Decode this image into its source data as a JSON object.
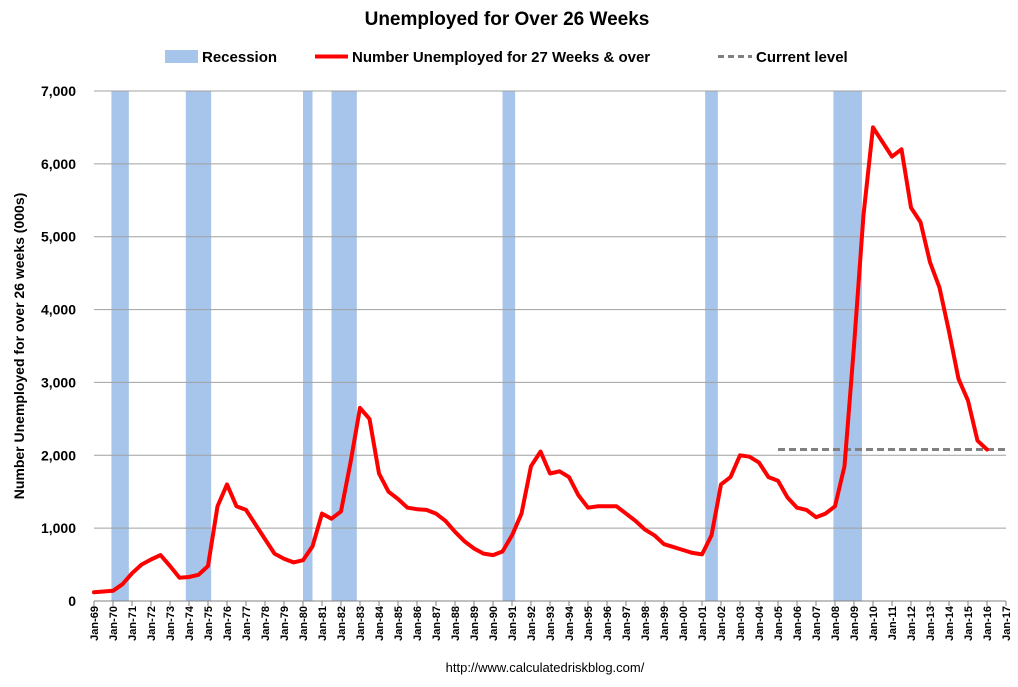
{
  "chart_data": {
    "type": "line",
    "title": "Unemployed for Over 26 Weeks",
    "ylabel": "Number Unemployed for over 26 weeks (000s)",
    "xlabel": "",
    "ylim": [
      0,
      7000
    ],
    "xlim": [
      "Jan-69",
      "Jan-17"
    ],
    "grid": "horizontal",
    "legend_position": "top",
    "source": "http://www.calculatedriskblog.com/",
    "y_ticks": [
      "0",
      "1,000",
      "2,000",
      "3,000",
      "4,000",
      "5,000",
      "6,000",
      "7,000"
    ],
    "y_tick_values": [
      0,
      1000,
      2000,
      3000,
      4000,
      5000,
      6000,
      7000
    ],
    "x_ticks": [
      "Jan-69",
      "Jan-70",
      "Jan-71",
      "Jan-72",
      "Jan-73",
      "Jan-74",
      "Jan-75",
      "Jan-76",
      "Jan-77",
      "Jan-78",
      "Jan-79",
      "Jan-80",
      "Jan-81",
      "Jan-82",
      "Jan-83",
      "Jan-84",
      "Jan-85",
      "Jan-86",
      "Jan-87",
      "Jan-88",
      "Jan-89",
      "Jan-90",
      "Jan-91",
      "Jan-92",
      "Jan-93",
      "Jan-94",
      "Jan-95",
      "Jan-96",
      "Jan-97",
      "Jan-98",
      "Jan-99",
      "Jan-00",
      "Jan-01",
      "Jan-02",
      "Jan-03",
      "Jan-04",
      "Jan-05",
      "Jan-06",
      "Jan-07",
      "Jan-08",
      "Jan-09",
      "Jan-10",
      "Jan-11",
      "Jan-12",
      "Jan-13",
      "Jan-14",
      "Jan-15",
      "Jan-16",
      "Jan-17"
    ],
    "legend": {
      "recession": "Recession",
      "series": "Number Unemployed for 27 Weeks & over",
      "current": "Current level"
    },
    "colors": {
      "recession": "#a7c4ea",
      "series": "#ff0000",
      "current": "#808080",
      "grid": "#a0a0a0"
    },
    "recessions": [
      {
        "start": "Dec-69",
        "end": "Nov-70"
      },
      {
        "start": "Nov-73",
        "end": "Mar-75"
      },
      {
        "start": "Jan-80",
        "end": "Jul-80"
      },
      {
        "start": "Jul-81",
        "end": "Nov-82"
      },
      {
        "start": "Jul-90",
        "end": "Mar-91"
      },
      {
        "start": "Mar-01",
        "end": "Nov-01"
      },
      {
        "start": "Dec-07",
        "end": "Jun-09"
      }
    ],
    "current_level": {
      "value": 2080,
      "from": "Jan-05",
      "to": "Jan-17"
    },
    "series": [
      {
        "name": "Number Unemployed for 27 Weeks & over",
        "x": [
          "Jan-69",
          "Jul-69",
          "Jan-70",
          "Jul-70",
          "Jan-71",
          "Jul-71",
          "Jan-72",
          "Jul-72",
          "Jan-73",
          "Jul-73",
          "Jan-74",
          "Jul-74",
          "Jan-75",
          "Jul-75",
          "Jan-76",
          "Jul-76",
          "Jan-77",
          "Jul-77",
          "Jan-78",
          "Jul-78",
          "Jan-79",
          "Jul-79",
          "Jan-80",
          "Jul-80",
          "Jan-81",
          "Jul-81",
          "Jan-82",
          "Jul-82",
          "Jan-83",
          "Jul-83",
          "Jan-84",
          "Jul-84",
          "Jan-85",
          "Jul-85",
          "Jan-86",
          "Jul-86",
          "Jan-87",
          "Jul-87",
          "Jan-88",
          "Jul-88",
          "Jan-89",
          "Jul-89",
          "Jan-90",
          "Jul-90",
          "Jan-91",
          "Jul-91",
          "Jan-92",
          "Jul-92",
          "Jan-93",
          "Jul-93",
          "Jan-94",
          "Jul-94",
          "Jan-95",
          "Jul-95",
          "Jan-96",
          "Jul-96",
          "Jan-97",
          "Jul-97",
          "Jan-98",
          "Jul-98",
          "Jan-99",
          "Jul-99",
          "Jan-00",
          "Jul-00",
          "Jan-01",
          "Jul-01",
          "Jan-02",
          "Jul-02",
          "Jan-03",
          "Jul-03",
          "Jan-04",
          "Jul-04",
          "Jan-05",
          "Jul-05",
          "Jan-06",
          "Jul-06",
          "Jan-07",
          "Jul-07",
          "Jan-08",
          "Jul-08",
          "Jan-09",
          "Jul-09",
          "Jan-10",
          "Jul-10",
          "Jan-11",
          "Jul-11",
          "Jan-12",
          "Jul-12",
          "Jan-13",
          "Jul-13",
          "Jan-14",
          "Jul-14",
          "Jan-15",
          "Jul-15",
          "Jan-16"
        ],
        "values": [
          120,
          130,
          140,
          230,
          380,
          500,
          570,
          630,
          480,
          320,
          330,
          360,
          480,
          1300,
          1600,
          1300,
          1250,
          1050,
          850,
          650,
          580,
          530,
          560,
          750,
          1200,
          1130,
          1230,
          1900,
          2650,
          2500,
          1750,
          1500,
          1400,
          1280,
          1260,
          1250,
          1200,
          1100,
          950,
          820,
          720,
          650,
          630,
          680,
          900,
          1200,
          1850,
          2050,
          1750,
          1780,
          1700,
          1450,
          1280,
          1300,
          1300,
          1300,
          1200,
          1100,
          980,
          900,
          780,
          740,
          700,
          660,
          640,
          900,
          1600,
          1700,
          2000,
          1980,
          1900,
          1700,
          1650,
          1420,
          1280,
          1250,
          1150,
          1200,
          1300,
          1850,
          3500,
          5300,
          6500,
          6300,
          6100,
          6200,
          5400,
          5200,
          4650,
          4300,
          3700,
          3050,
          2750,
          2200,
          2080
        ]
      }
    ]
  }
}
